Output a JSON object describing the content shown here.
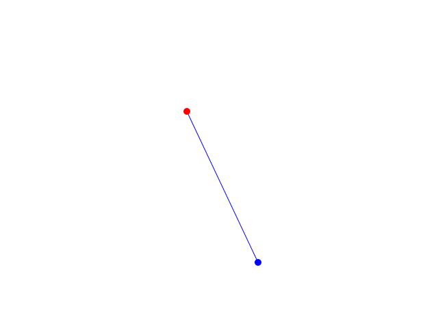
{
  "canvas": {
    "background_color": "#ffffff",
    "start_point": {
      "color": "#ff0000"
    },
    "end_point": {
      "color": "#0000ff"
    },
    "connector": {
      "color": "#0000ff"
    }
  }
}
